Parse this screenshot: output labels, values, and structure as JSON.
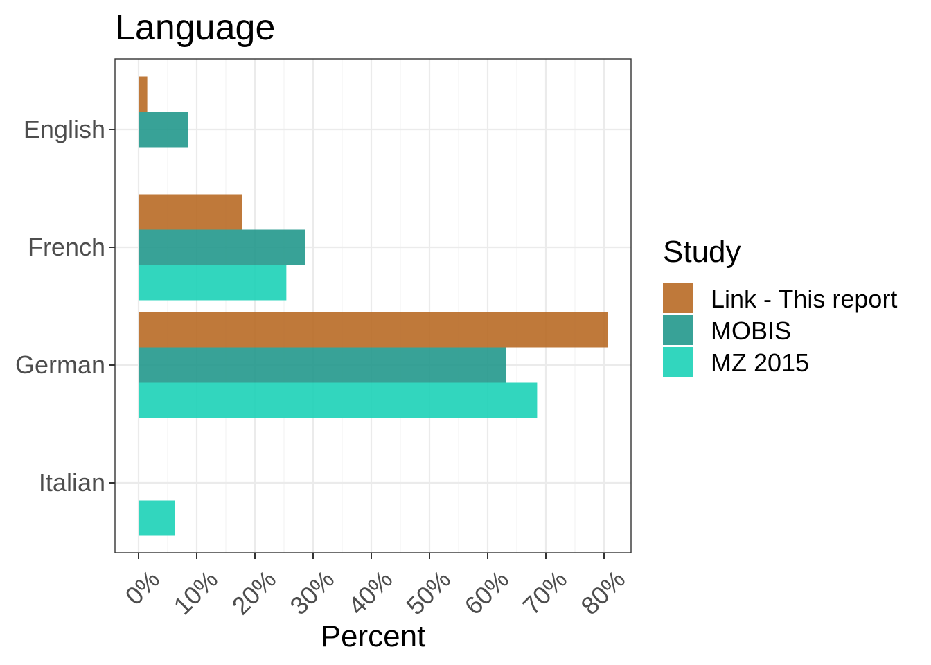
{
  "chart_data": {
    "type": "bar",
    "orientation": "horizontal",
    "title": "Language",
    "xlabel": "Percent",
    "ylabel": "",
    "categories": [
      "English",
      "French",
      "German",
      "Italian"
    ],
    "xlim": [
      -2,
      84
    ],
    "xticks": [
      0,
      10,
      20,
      30,
      40,
      50,
      60,
      70,
      80
    ],
    "xtick_labels": [
      "0%",
      "10%",
      "20%",
      "30%",
      "40%",
      "50%",
      "60%",
      "70%",
      "80%"
    ],
    "grid": true,
    "legend": {
      "title": "Study",
      "position": "right"
    },
    "series": [
      {
        "name": "Link - This report",
        "color": "#b5651d",
        "values": [
          1.5,
          17.8,
          80.6,
          null
        ]
      },
      {
        "name": "MOBIS",
        "color": "#1a9488",
        "values": [
          8.5,
          28.6,
          63.1,
          null
        ]
      },
      {
        "name": "MZ 2015",
        "color": "#14d0b4",
        "values": [
          null,
          25.4,
          68.5,
          6.3
        ]
      }
    ]
  }
}
